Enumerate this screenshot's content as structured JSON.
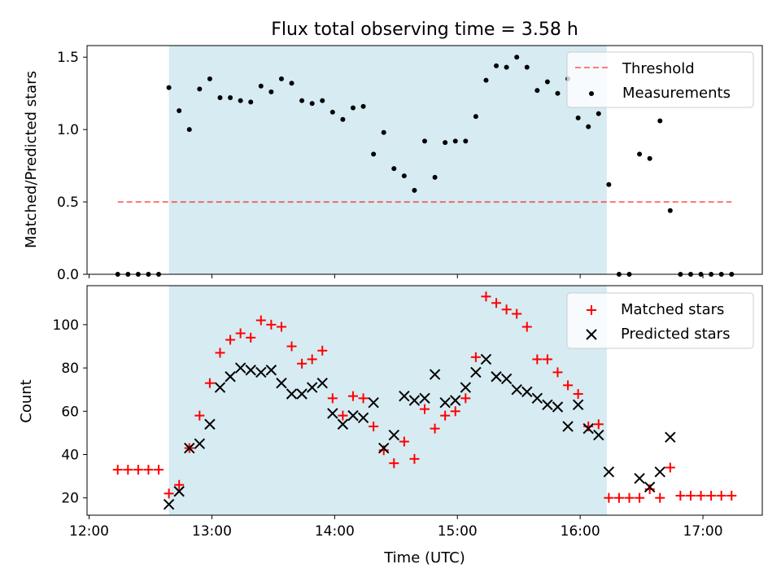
{
  "title": "Flux total observing time = 3.58 h",
  "colors": {
    "shade": "#add8e6",
    "threshold": "#ff0000",
    "matched": "#ff0000",
    "predicted": "#000000",
    "measurement": "#000000"
  },
  "chart_data": [
    {
      "type": "scatter",
      "ylabel": "Matched/Predicted stars",
      "xlabel": "",
      "ylim": [
        0,
        1.58
      ],
      "xlim": [
        "11:59",
        "17:29"
      ],
      "yticks": [
        "0.0",
        "0.5",
        "1.0",
        "1.5"
      ],
      "shaded_interval": [
        "12:39",
        "16:13"
      ],
      "legend": {
        "position": "top-right",
        "entries": [
          "Threshold",
          "Measurements"
        ]
      },
      "threshold": {
        "name": "Threshold",
        "value": 0.5,
        "x_range": [
          "12:14",
          "17:14"
        ],
        "style": "dashed"
      },
      "series": [
        {
          "name": "Measurements",
          "x": [
            "12:14",
            "12:19",
            "12:24",
            "12:29",
            "12:34",
            "12:39",
            "12:44",
            "12:49",
            "12:54",
            "12:59",
            "13:04",
            "13:09",
            "13:14",
            "13:19",
            "13:24",
            "13:29",
            "13:34",
            "13:39",
            "13:44",
            "13:49",
            "13:54",
            "13:59",
            "14:04",
            "14:09",
            "14:14",
            "14:19",
            "14:24",
            "14:29",
            "14:34",
            "14:39",
            "14:44",
            "14:49",
            "14:54",
            "14:59",
            "15:04",
            "15:09",
            "15:14",
            "15:19",
            "15:24",
            "15:29",
            "15:34",
            "15:39",
            "15:44",
            "15:49",
            "15:54",
            "15:59",
            "16:04",
            "16:09",
            "16:14",
            "16:19",
            "16:24",
            "16:29",
            "16:34",
            "16:39",
            "16:44",
            "16:49",
            "16:54",
            "16:59",
            "17:04",
            "17:09",
            "17:14"
          ],
          "y": [
            0,
            0,
            0,
            0,
            0,
            1.29,
            1.13,
            1.0,
            1.28,
            1.35,
            1.22,
            1.22,
            1.2,
            1.19,
            1.3,
            1.26,
            1.35,
            1.32,
            1.2,
            1.18,
            1.2,
            1.12,
            1.07,
            1.15,
            1.16,
            0.83,
            0.98,
            0.73,
            0.68,
            0.58,
            0.92,
            0.67,
            0.91,
            0.92,
            0.92,
            1.09,
            1.34,
            1.44,
            1.43,
            1.5,
            1.43,
            1.27,
            1.33,
            1.25,
            1.35,
            1.08,
            1.02,
            1.11,
            0.62,
            0,
            0,
            0.83,
            0.8,
            1.06,
            0.44,
            0,
            0,
            0,
            0,
            0,
            0
          ]
        }
      ]
    },
    {
      "type": "scatter",
      "ylabel": "Count",
      "xlabel": "Time (UTC)",
      "ylim": [
        12,
        118
      ],
      "xlim": [
        "11:59",
        "17:29"
      ],
      "yticks": [
        "20",
        "40",
        "60",
        "80",
        "100"
      ],
      "xticks": [
        "12:00",
        "13:00",
        "14:00",
        "15:00",
        "16:00",
        "17:00"
      ],
      "shaded_interval": [
        "12:39",
        "16:13"
      ],
      "legend": {
        "position": "top-right",
        "entries": [
          "Matched stars",
          "Predicted stars"
        ]
      },
      "series": [
        {
          "name": "Matched stars",
          "marker": "plus",
          "x": [
            "12:14",
            "12:19",
            "12:24",
            "12:29",
            "12:34",
            "12:39",
            "12:44",
            "12:49",
            "12:54",
            "12:59",
            "13:04",
            "13:09",
            "13:14",
            "13:19",
            "13:24",
            "13:29",
            "13:34",
            "13:39",
            "13:44",
            "13:49",
            "13:54",
            "13:59",
            "14:04",
            "14:09",
            "14:14",
            "14:19",
            "14:24",
            "14:29",
            "14:34",
            "14:39",
            "14:44",
            "14:49",
            "14:54",
            "14:59",
            "15:04",
            "15:09",
            "15:14",
            "15:19",
            "15:24",
            "15:29",
            "15:34",
            "15:39",
            "15:44",
            "15:49",
            "15:54",
            "15:59",
            "16:04",
            "16:09",
            "16:14",
            "16:19",
            "16:24",
            "16:29",
            "16:34",
            "16:39",
            "16:44",
            "16:49",
            "16:54",
            "16:59",
            "17:04",
            "17:09",
            "17:14"
          ],
          "y": [
            33,
            33,
            33,
            33,
            33,
            22,
            26,
            43,
            58,
            73,
            87,
            93,
            96,
            94,
            102,
            100,
            99,
            90,
            82,
            84,
            88,
            66,
            58,
            67,
            66,
            53,
            42,
            36,
            46,
            38,
            61,
            52,
            58,
            60,
            66,
            85,
            113,
            110,
            107,
            105,
            99,
            84,
            84,
            78,
            72,
            68,
            53,
            54,
            20,
            20,
            20,
            20,
            24,
            20,
            34,
            21,
            21,
            21,
            21,
            21,
            21
          ]
        },
        {
          "name": "Predicted stars",
          "marker": "x",
          "x": [
            "12:39",
            "12:44",
            "12:49",
            "12:54",
            "12:59",
            "13:04",
            "13:09",
            "13:14",
            "13:19",
            "13:24",
            "13:29",
            "13:34",
            "13:39",
            "13:44",
            "13:49",
            "13:54",
            "13:59",
            "14:04",
            "14:09",
            "14:14",
            "14:19",
            "14:24",
            "14:29",
            "14:34",
            "14:39",
            "14:44",
            "14:49",
            "14:54",
            "14:59",
            "15:04",
            "15:09",
            "15:14",
            "15:19",
            "15:24",
            "15:29",
            "15:34",
            "15:39",
            "15:44",
            "15:49",
            "15:54",
            "15:59",
            "16:04",
            "16:09",
            "16:14",
            "16:29",
            "16:34",
            "16:39",
            "16:44"
          ],
          "y": [
            17,
            23,
            43,
            45,
            54,
            71,
            76,
            80,
            79,
            78,
            79,
            73,
            68,
            68,
            71,
            73,
            59,
            54,
            58,
            57,
            64,
            43,
            49,
            67,
            65,
            66,
            77,
            64,
            65,
            71,
            78,
            84,
            76,
            75,
            70,
            69,
            66,
            63,
            62,
            53,
            63,
            52,
            49,
            32,
            29,
            25,
            32,
            48
          ]
        }
      ]
    }
  ]
}
